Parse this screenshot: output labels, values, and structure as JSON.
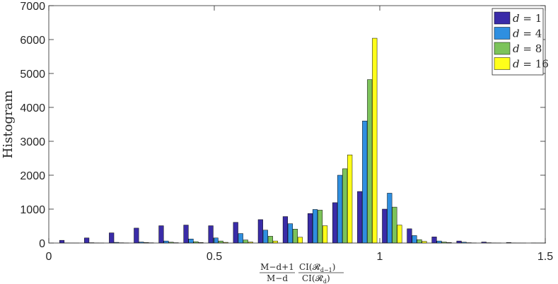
{
  "chart_data": {
    "type": "bar",
    "ylabel": "Histogram",
    "xlabel": {
      "frac1_num": "M−d+1",
      "frac1_den": "M−d",
      "frac2_num": "CI(",
      "frac2_num_sym": "𝓡",
      "frac2_num_sub": "d−1",
      "frac2_den": "CI(",
      "frac2_den_sym": "𝓡",
      "frac2_den_sub": "d",
      "close": ")"
    },
    "xlim": [
      0,
      1.5
    ],
    "ylim": [
      0,
      7000
    ],
    "xticks": [
      0,
      0.5,
      1,
      1.5
    ],
    "xtick_labels": [
      "0",
      "0.5",
      "1",
      "1.5"
    ],
    "yticks": [
      0,
      1000,
      2000,
      3000,
      4000,
      5000,
      6000,
      7000
    ],
    "ytick_labels": [
      "0",
      "1000",
      "2000",
      "3000",
      "4000",
      "5000",
      "6000",
      "7000"
    ],
    "grid": false,
    "legend_position": "top-right",
    "bin_centers": [
      0.0625,
      0.1375,
      0.2125,
      0.2875,
      0.3625,
      0.4375,
      0.5125,
      0.5875,
      0.6625,
      0.7375,
      0.8125,
      0.8875,
      0.9625,
      1.0375,
      1.1125,
      1.1875,
      1.2625,
      1.3375,
      1.4125,
      1.4875
    ],
    "series": [
      {
        "name": "d = 1",
        "legend_var": "d",
        "legend_val": "1",
        "color": "#3a2ca8",
        "values": [
          80,
          150,
          300,
          440,
          510,
          530,
          510,
          610,
          690,
          780,
          870,
          1190,
          1520,
          1000,
          420,
          180,
          60,
          30,
          15,
          5
        ]
      },
      {
        "name": "d = 4",
        "legend_var": "d",
        "legend_val": "4",
        "color": "#2f8fe0",
        "values": [
          5,
          10,
          20,
          30,
          60,
          120,
          150,
          280,
          380,
          570,
          990,
          2000,
          3600,
          1470,
          220,
          60,
          25,
          10,
          5,
          2
        ]
      },
      {
        "name": "d = 8",
        "legend_var": "d",
        "legend_val": "8",
        "color": "#7cc35a",
        "values": [
          2,
          5,
          8,
          15,
          25,
          40,
          60,
          90,
          200,
          410,
          970,
          2190,
          4820,
          1060,
          100,
          30,
          10,
          5,
          2,
          1
        ]
      },
      {
        "name": "d = 16",
        "legend_var": "d",
        "legend_val": "16",
        "color": "#ffff1a",
        "values": [
          1,
          2,
          4,
          8,
          10,
          15,
          20,
          30,
          60,
          170,
          510,
          2600,
          6040,
          530,
          50,
          15,
          5,
          2,
          1,
          0
        ]
      }
    ]
  }
}
